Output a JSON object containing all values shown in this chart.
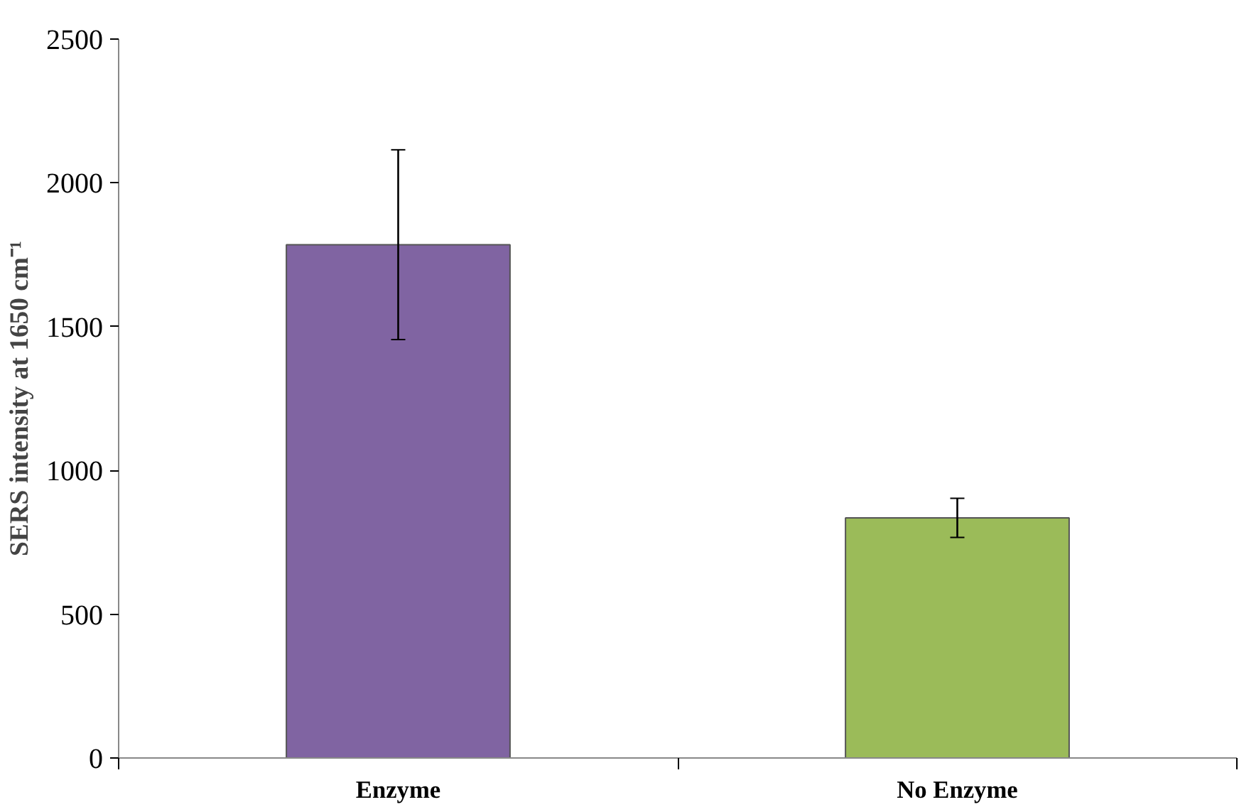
{
  "chart_data": {
    "type": "bar",
    "ylabel": "SERS intensity at 1650 cm⁻¹",
    "categories": [
      "Enzyme",
      "No Enzyme"
    ],
    "values": [
      1785,
      835
    ],
    "errors": [
      330,
      68
    ],
    "colors": [
      "#8064a2",
      "#9bbb59"
    ],
    "ylim": [
      0,
      2500
    ],
    "yticks": [
      0,
      500,
      1000,
      1500,
      2000,
      2500
    ],
    "grid": false
  }
}
